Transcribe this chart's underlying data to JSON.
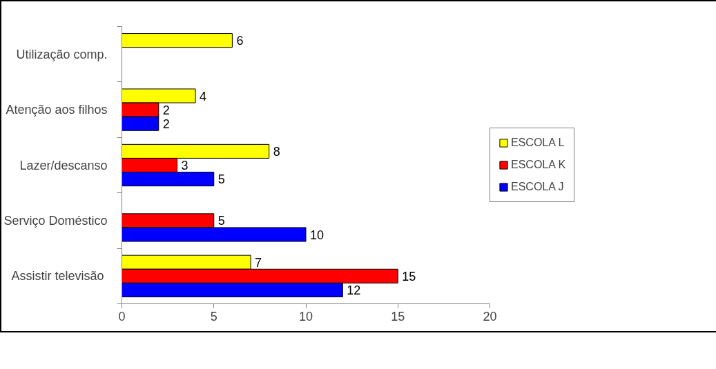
{
  "chart_data": {
    "type": "bar",
    "orientation": "horizontal",
    "categories": [
      "Utilização comp.",
      "Atenção aos filhos",
      "Lazer/descanso",
      "Serviço Doméstico",
      "Assistir  televisão"
    ],
    "series": [
      {
        "name": "ESCOLA L",
        "color": "#ffff00",
        "values": [
          6,
          4,
          8,
          null,
          7
        ]
      },
      {
        "name": "ESCOLA K",
        "color": "#ff0000",
        "values": [
          null,
          2,
          3,
          5,
          15
        ]
      },
      {
        "name": "ESCOLA J",
        "color": "#0000ff",
        "values": [
          null,
          2,
          5,
          10,
          12
        ]
      }
    ],
    "xlim": [
      0,
      20
    ],
    "xticks": [
      0,
      5,
      10,
      15,
      20
    ],
    "grid": false,
    "legend": "right",
    "data_labels": true
  }
}
